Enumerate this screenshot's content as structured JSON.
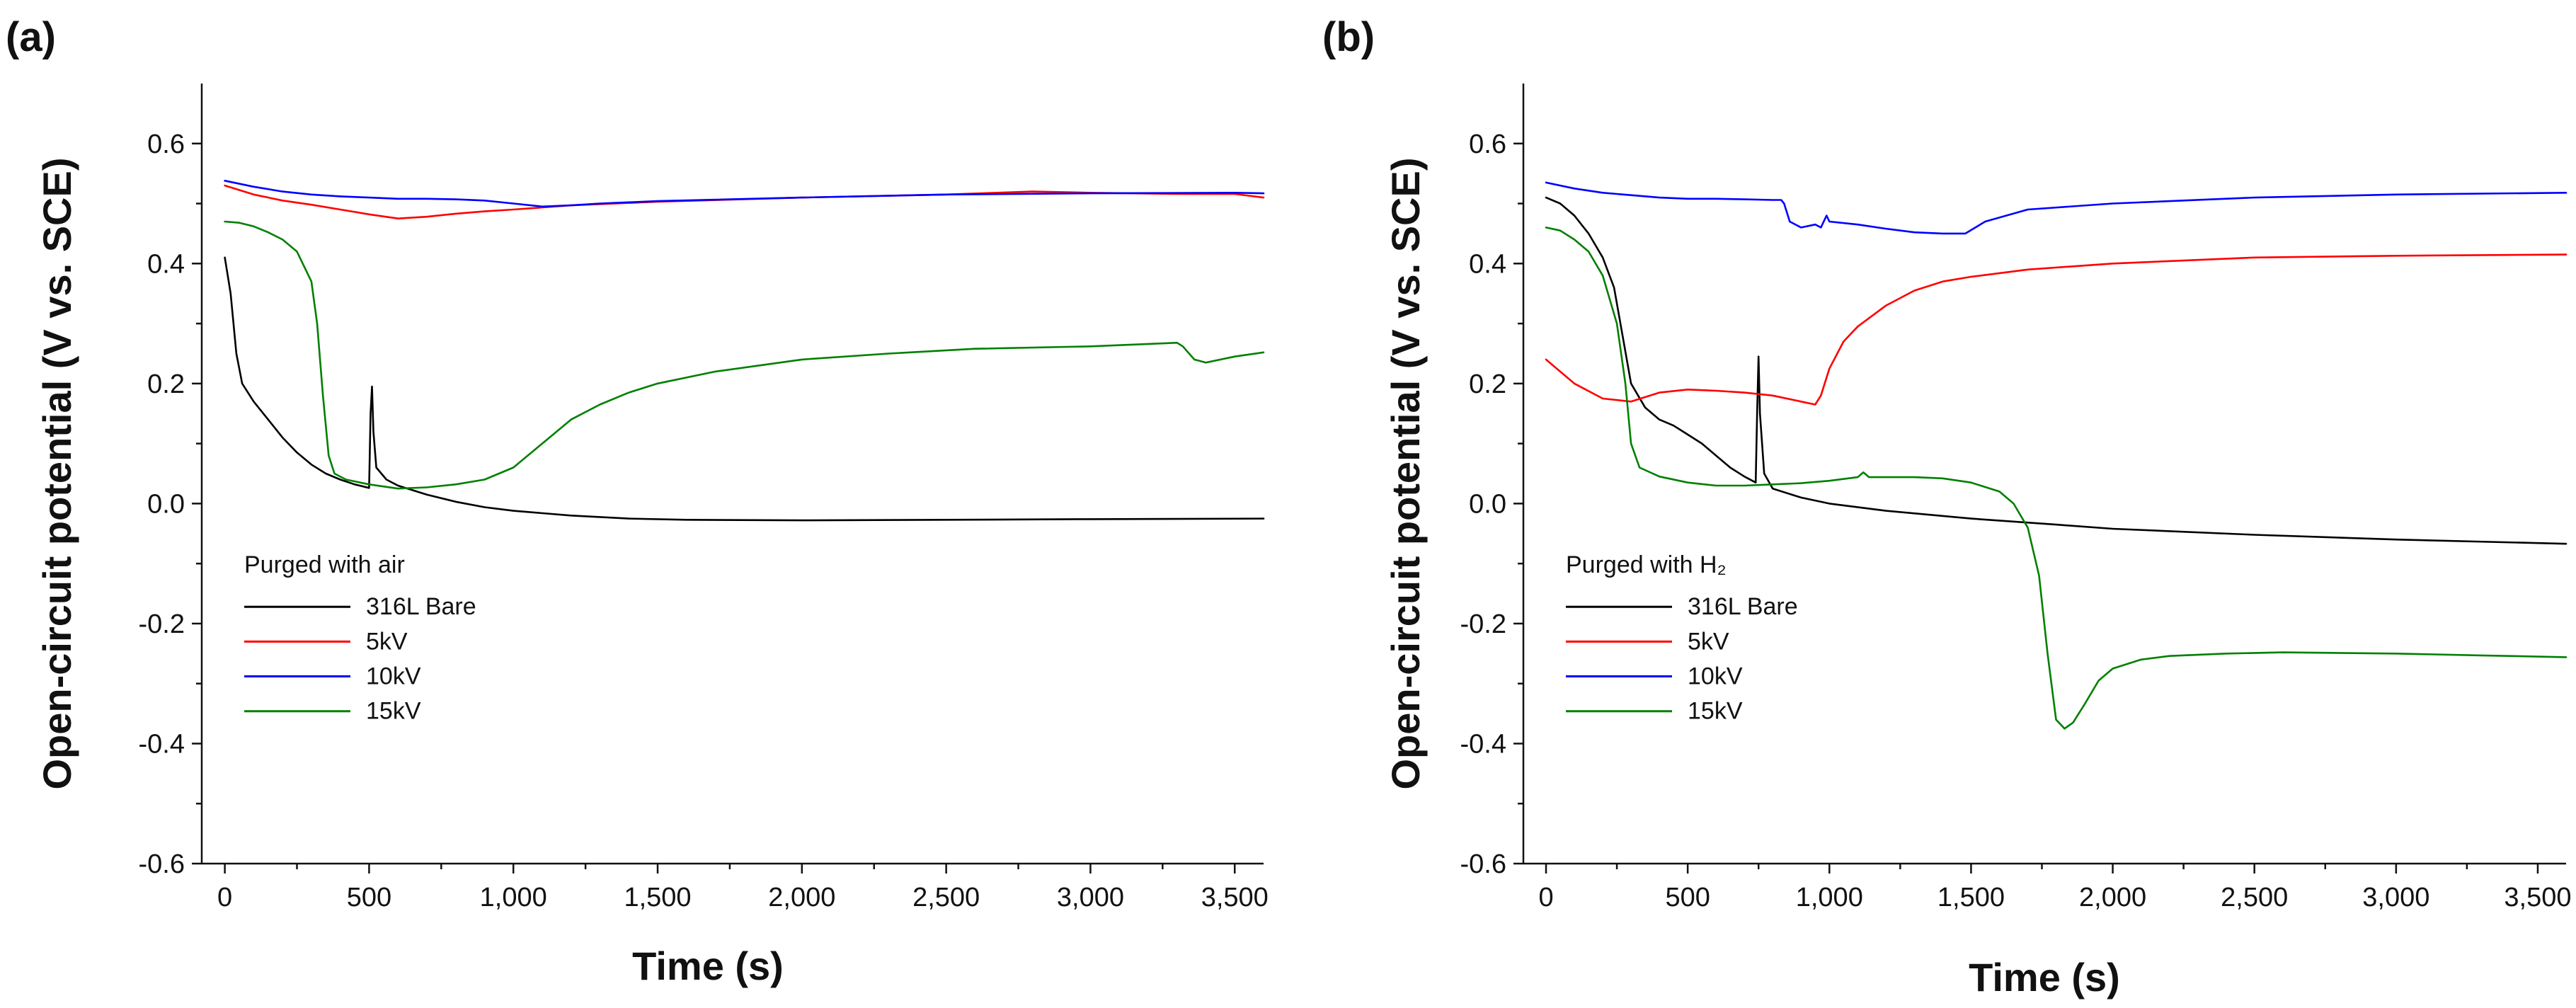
{
  "colors": {
    "316L Bare": "#000000",
    "5kV": "#ff0000",
    "10kV": "#0000ff",
    "15kV": "#008000"
  },
  "chart_data": [
    {
      "type": "line",
      "panel_label": "(a)",
      "xlabel": "Time (s)",
      "ylabel": "Open-circuit potential (V vs. SCE)",
      "xlim": [
        -80,
        3600
      ],
      "ylim": [
        -0.6,
        0.7
      ],
      "x_ticks": [
        0,
        500,
        1000,
        1500,
        2000,
        2500,
        3000,
        3500
      ],
      "x_tick_labels": [
        "0",
        "500",
        "1,000",
        "1,500",
        "2,000",
        "2,500",
        "3,000",
        "3,500"
      ],
      "y_ticks": [
        -0.6,
        -0.4,
        -0.2,
        0.0,
        0.2,
        0.4,
        0.6
      ],
      "y_tick_labels": [
        "-0.6",
        "-0.4",
        "-0.2",
        "0.0",
        "0.2",
        "0.4",
        "0.6"
      ],
      "legend_title": "Purged with air",
      "legend_position": "lower-left",
      "series": [
        {
          "name": "316L Bare",
          "points": [
            [
              0,
              0.41
            ],
            [
              20,
              0.35
            ],
            [
              40,
              0.25
            ],
            [
              60,
              0.2
            ],
            [
              100,
              0.17
            ],
            [
              150,
              0.14
            ],
            [
              200,
              0.11
            ],
            [
              250,
              0.085
            ],
            [
              300,
              0.065
            ],
            [
              350,
              0.05
            ],
            [
              400,
              0.04
            ],
            [
              450,
              0.032
            ],
            [
              500,
              0.026
            ],
            [
              505,
              0.15
            ],
            [
              510,
              0.195
            ],
            [
              515,
              0.12
            ],
            [
              525,
              0.06
            ],
            [
              560,
              0.04
            ],
            [
              600,
              0.03
            ],
            [
              700,
              0.015
            ],
            [
              800,
              0.003
            ],
            [
              900,
              -0.006
            ],
            [
              1000,
              -0.012
            ],
            [
              1200,
              -0.02
            ],
            [
              1400,
              -0.025
            ],
            [
              1600,
              -0.027
            ],
            [
              2000,
              -0.028
            ],
            [
              2500,
              -0.027
            ],
            [
              3000,
              -0.026
            ],
            [
              3600,
              -0.025
            ]
          ]
        },
        {
          "name": "5kV",
          "points": [
            [
              0,
              0.53
            ],
            [
              100,
              0.515
            ],
            [
              200,
              0.505
            ],
            [
              300,
              0.498
            ],
            [
              400,
              0.49
            ],
            [
              500,
              0.482
            ],
            [
              600,
              0.475
            ],
            [
              700,
              0.478
            ],
            [
              800,
              0.483
            ],
            [
              900,
              0.487
            ],
            [
              1000,
              0.49
            ],
            [
              1200,
              0.497
            ],
            [
              1500,
              0.503
            ],
            [
              2000,
              0.51
            ],
            [
              2500,
              0.515
            ],
            [
              2800,
              0.52
            ],
            [
              3000,
              0.518
            ],
            [
              3300,
              0.516
            ],
            [
              3500,
              0.516
            ],
            [
              3600,
              0.51
            ]
          ]
        },
        {
          "name": "10kV",
          "points": [
            [
              0,
              0.538
            ],
            [
              100,
              0.528
            ],
            [
              200,
              0.52
            ],
            [
              300,
              0.515
            ],
            [
              400,
              0.512
            ],
            [
              500,
              0.51
            ],
            [
              600,
              0.508
            ],
            [
              700,
              0.508
            ],
            [
              800,
              0.507
            ],
            [
              900,
              0.505
            ],
            [
              1000,
              0.5
            ],
            [
              1100,
              0.495
            ],
            [
              1200,
              0.497
            ],
            [
              1300,
              0.5
            ],
            [
              1500,
              0.504
            ],
            [
              2000,
              0.51
            ],
            [
              2500,
              0.515
            ],
            [
              3000,
              0.517
            ],
            [
              3500,
              0.518
            ],
            [
              3600,
              0.517
            ]
          ]
        },
        {
          "name": "15kV",
          "points": [
            [
              0,
              0.47
            ],
            [
              50,
              0.468
            ],
            [
              100,
              0.462
            ],
            [
              150,
              0.452
            ],
            [
              200,
              0.44
            ],
            [
              250,
              0.42
            ],
            [
              300,
              0.37
            ],
            [
              320,
              0.3
            ],
            [
              340,
              0.18
            ],
            [
              360,
              0.08
            ],
            [
              380,
              0.05
            ],
            [
              420,
              0.04
            ],
            [
              500,
              0.032
            ],
            [
              600,
              0.025
            ],
            [
              700,
              0.027
            ],
            [
              800,
              0.032
            ],
            [
              900,
              0.04
            ],
            [
              1000,
              0.06
            ],
            [
              1100,
              0.1
            ],
            [
              1200,
              0.14
            ],
            [
              1300,
              0.165
            ],
            [
              1400,
              0.185
            ],
            [
              1500,
              0.2
            ],
            [
              1700,
              0.22
            ],
            [
              2000,
              0.24
            ],
            [
              2300,
              0.25
            ],
            [
              2600,
              0.258
            ],
            [
              3000,
              0.262
            ],
            [
              3300,
              0.268
            ],
            [
              3320,
              0.262
            ],
            [
              3360,
              0.24
            ],
            [
              3400,
              0.235
            ],
            [
              3500,
              0.245
            ],
            [
              3600,
              0.252
            ]
          ]
        }
      ]
    },
    {
      "type": "line",
      "panel_label": "(b)",
      "xlabel": "Time (s)",
      "ylabel": "Open-circuit potential (V vs. SCE)",
      "xlim": [
        -80,
        3600
      ],
      "ylim": [
        -0.6,
        0.7
      ],
      "x_ticks": [
        0,
        500,
        1000,
        1500,
        2000,
        2500,
        3000,
        3500
      ],
      "x_tick_labels": [
        "0",
        "500",
        "1,000",
        "1,500",
        "2,000",
        "2,500",
        "3,000",
        "3,500"
      ],
      "y_ticks": [
        -0.6,
        -0.4,
        -0.2,
        0.0,
        0.2,
        0.4,
        0.6
      ],
      "y_tick_labels": [
        "-0.6",
        "-0.4",
        "-0.2",
        "0.0",
        "0.2",
        "0.4",
        "0.6"
      ],
      "legend_title": "Purged with H₂",
      "legend_position": "lower-left",
      "series": [
        {
          "name": "316L Bare",
          "points": [
            [
              0,
              0.51
            ],
            [
              50,
              0.5
            ],
            [
              100,
              0.48
            ],
            [
              150,
              0.45
            ],
            [
              200,
              0.41
            ],
            [
              240,
              0.36
            ],
            [
              270,
              0.28
            ],
            [
              300,
              0.2
            ],
            [
              350,
              0.16
            ],
            [
              400,
              0.14
            ],
            [
              450,
              0.13
            ],
            [
              500,
              0.115
            ],
            [
              550,
              0.1
            ],
            [
              600,
              0.08
            ],
            [
              650,
              0.06
            ],
            [
              700,
              0.045
            ],
            [
              740,
              0.035
            ],
            [
              745,
              0.15
            ],
            [
              750,
              0.245
            ],
            [
              755,
              0.15
            ],
            [
              770,
              0.05
            ],
            [
              800,
              0.025
            ],
            [
              900,
              0.01
            ],
            [
              1000,
              0.0
            ],
            [
              1200,
              -0.012
            ],
            [
              1500,
              -0.025
            ],
            [
              1800,
              -0.035
            ],
            [
              2000,
              -0.042
            ],
            [
              2500,
              -0.052
            ],
            [
              3000,
              -0.06
            ],
            [
              3600,
              -0.067
            ]
          ]
        },
        {
          "name": "5kV",
          "points": [
            [
              0,
              0.24
            ],
            [
              50,
              0.22
            ],
            [
              100,
              0.2
            ],
            [
              200,
              0.175
            ],
            [
              300,
              0.17
            ],
            [
              400,
              0.185
            ],
            [
              500,
              0.19
            ],
            [
              600,
              0.188
            ],
            [
              700,
              0.185
            ],
            [
              800,
              0.18
            ],
            [
              900,
              0.17
            ],
            [
              950,
              0.165
            ],
            [
              970,
              0.18
            ],
            [
              1000,
              0.225
            ],
            [
              1050,
              0.27
            ],
            [
              1100,
              0.295
            ],
            [
              1200,
              0.33
            ],
            [
              1300,
              0.355
            ],
            [
              1400,
              0.37
            ],
            [
              1500,
              0.378
            ],
            [
              1700,
              0.39
            ],
            [
              2000,
              0.4
            ],
            [
              2500,
              0.41
            ],
            [
              3000,
              0.413
            ],
            [
              3600,
              0.415
            ]
          ]
        },
        {
          "name": "10kV",
          "points": [
            [
              0,
              0.535
            ],
            [
              100,
              0.525
            ],
            [
              200,
              0.518
            ],
            [
              300,
              0.514
            ],
            [
              400,
              0.51
            ],
            [
              500,
              0.508
            ],
            [
              600,
              0.508
            ],
            [
              700,
              0.507
            ],
            [
              800,
              0.506
            ],
            [
              830,
              0.506
            ],
            [
              840,
              0.5
            ],
            [
              860,
              0.47
            ],
            [
              900,
              0.46
            ],
            [
              950,
              0.465
            ],
            [
              970,
              0.46
            ],
            [
              990,
              0.48
            ],
            [
              1000,
              0.47
            ],
            [
              1100,
              0.465
            ],
            [
              1200,
              0.458
            ],
            [
              1300,
              0.452
            ],
            [
              1400,
              0.45
            ],
            [
              1480,
              0.45
            ],
            [
              1550,
              0.47
            ],
            [
              1700,
              0.49
            ],
            [
              2000,
              0.5
            ],
            [
              2500,
              0.51
            ],
            [
              3000,
              0.515
            ],
            [
              3600,
              0.518
            ]
          ]
        },
        {
          "name": "15kV",
          "points": [
            [
              0,
              0.46
            ],
            [
              50,
              0.455
            ],
            [
              100,
              0.44
            ],
            [
              150,
              0.42
            ],
            [
              200,
              0.38
            ],
            [
              250,
              0.3
            ],
            [
              280,
              0.2
            ],
            [
              300,
              0.1
            ],
            [
              330,
              0.06
            ],
            [
              400,
              0.045
            ],
            [
              500,
              0.035
            ],
            [
              600,
              0.03
            ],
            [
              700,
              0.03
            ],
            [
              800,
              0.032
            ],
            [
              900,
              0.034
            ],
            [
              1000,
              0.038
            ],
            [
              1100,
              0.044
            ],
            [
              1120,
              0.052
            ],
            [
              1140,
              0.044
            ],
            [
              1200,
              0.044
            ],
            [
              1300,
              0.044
            ],
            [
              1400,
              0.042
            ],
            [
              1500,
              0.035
            ],
            [
              1600,
              0.02
            ],
            [
              1650,
              0.0
            ],
            [
              1700,
              -0.04
            ],
            [
              1740,
              -0.12
            ],
            [
              1770,
              -0.25
            ],
            [
              1800,
              -0.36
            ],
            [
              1830,
              -0.375
            ],
            [
              1860,
              -0.365
            ],
            [
              1900,
              -0.335
            ],
            [
              1950,
              -0.295
            ],
            [
              2000,
              -0.275
            ],
            [
              2100,
              -0.26
            ],
            [
              2200,
              -0.254
            ],
            [
              2400,
              -0.25
            ],
            [
              2600,
              -0.248
            ],
            [
              3000,
              -0.25
            ],
            [
              3300,
              -0.253
            ],
            [
              3600,
              -0.256
            ]
          ]
        }
      ]
    }
  ]
}
